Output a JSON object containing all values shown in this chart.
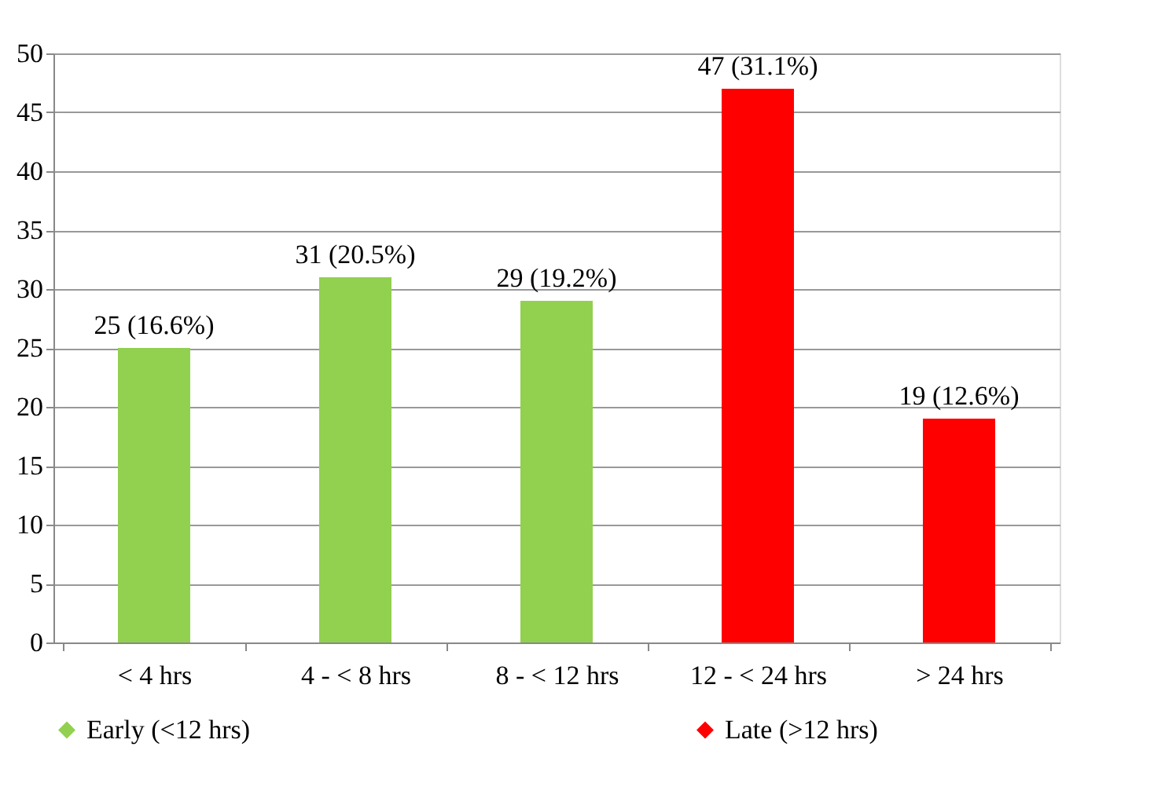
{
  "chart_data": {
    "type": "bar",
    "categories": [
      "< 4 hrs",
      "4 - < 8 hrs",
      "8 - < 12 hrs",
      "12 - < 24 hrs",
      "> 24 hrs"
    ],
    "series": [
      {
        "name": "Early (<12 hrs)",
        "color": "#92d050",
        "values": [
          25,
          31,
          29,
          null,
          null
        ],
        "value_labels": [
          "25 (16.6%)",
          "31 (20.5%)",
          "29 (19.2%)",
          null,
          null
        ]
      },
      {
        "name": "Late (>12 hrs)",
        "color": "#ff0000",
        "values": [
          null,
          null,
          null,
          47,
          19
        ],
        "value_labels": [
          null,
          null,
          null,
          "47 (31.1%)",
          "19 (12.6%)"
        ]
      }
    ],
    "ylim": [
      0,
      50
    ],
    "yticks": [
      0,
      5,
      10,
      15,
      20,
      25,
      30,
      35,
      40,
      45,
      50
    ],
    "grid": "y",
    "legend": "bottom",
    "marker": "diamond"
  }
}
